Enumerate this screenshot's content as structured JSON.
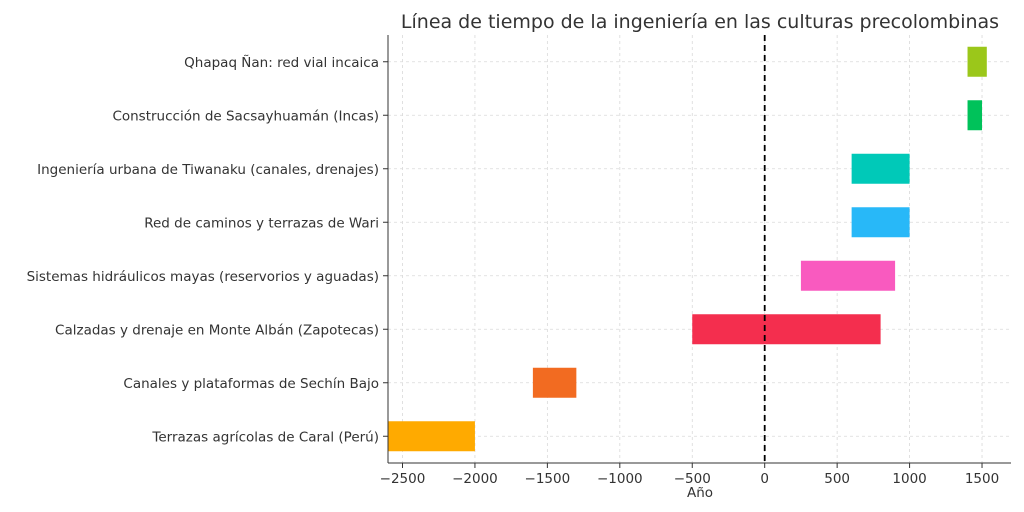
{
  "chart_data": {
    "type": "bar",
    "orientation": "horizontal-timeline",
    "title": "Línea de tiempo de la ingeniería en las culturas precolombinas",
    "xlabel": "Año",
    "ylabel": "",
    "xlim": [
      -2600,
      1700
    ],
    "xticks": [
      -2500,
      -2000,
      -1500,
      -1000,
      -500,
      0,
      500,
      1000,
      1500
    ],
    "xtick_labels": [
      "−2500",
      "−2000",
      "−1500",
      "−1000",
      "−500",
      "0",
      "500",
      "1000",
      "1500"
    ],
    "grid": true,
    "reference_line": {
      "x": 0,
      "style": "dashed",
      "color": "#000000"
    },
    "categories": [
      "Terrazas agrícolas de Caral (Perú)",
      "Canales y plataformas de Sechín Bajo",
      "Calzadas y drenaje en Monte Albán (Zapotecas)",
      "Sistemas hidráulicos mayas (reservorios y aguadas)",
      "Red de caminos y terrazas de Wari",
      "Ingeniería urbana de Tiwanaku (canales, drenajes)",
      "Construcción de Sacsayhuamán (Incas)",
      "Qhapaq Ñan: red vial incaica"
    ],
    "series": [
      {
        "start": [
          -2600,
          -1600,
          -500,
          250,
          600,
          600,
          1400,
          1400
        ],
        "end": [
          -2000,
          -1300,
          800,
          900,
          1000,
          1000,
          1500,
          1533
        ],
        "colors": [
          "#FFAA00",
          "#F26B21",
          "#F42E4E",
          "#F95ABF",
          "#28B8F8",
          "#00C9B8",
          "#00C25A",
          "#9BC71A"
        ]
      }
    ]
  }
}
